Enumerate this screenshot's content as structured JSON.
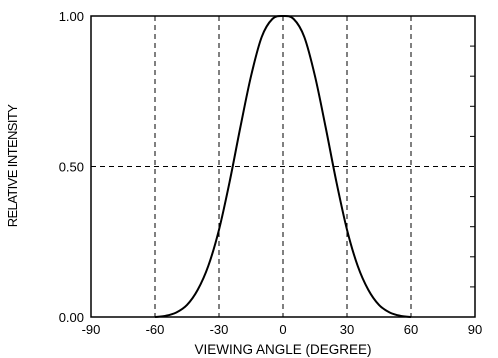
{
  "chart_data": {
    "type": "line",
    "title": "",
    "xlabel": "VIEWING ANGLE (DEGREE)",
    "ylabel": "RELATIVE INTENSITY",
    "xlim": [
      -90,
      90
    ],
    "ylim": [
      0,
      1
    ],
    "x_ticks": [
      -90,
      -60,
      -30,
      0,
      30,
      60,
      90
    ],
    "y_ticks": [
      "0.00",
      "0.50",
      "1.00"
    ],
    "y_minor_ticks": [
      0.1,
      0.2,
      0.3,
      0.4,
      0.6,
      0.7,
      0.8,
      0.9
    ],
    "grid": "dashed at x = -60, -30, 0, 30, 60 and y = 0.50",
    "legend": "none",
    "series": [
      {
        "x": [
          -60,
          -55,
          -50,
          -45,
          -40,
          -35,
          -30,
          -25,
          -20,
          -15,
          -10,
          -5,
          0,
          5,
          10,
          15,
          20,
          25,
          30,
          35,
          40,
          45,
          50,
          55,
          60
        ],
        "values": [
          0.0,
          0.004,
          0.015,
          0.04,
          0.09,
          0.17,
          0.29,
          0.45,
          0.63,
          0.8,
          0.93,
          0.99,
          1.0,
          0.99,
          0.93,
          0.8,
          0.63,
          0.45,
          0.29,
          0.17,
          0.09,
          0.04,
          0.015,
          0.004,
          0.0
        ],
        "color": "#000000"
      }
    ]
  }
}
